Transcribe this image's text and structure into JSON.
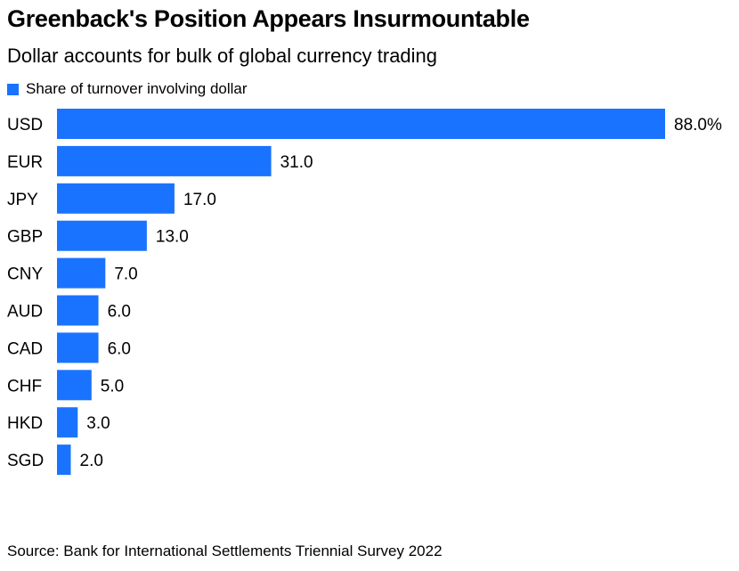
{
  "title": "Greenback's Position Appears Insurmountable",
  "subtitle": "Dollar accounts for bulk of global currency trading",
  "source": "Source: Bank for International Settlements Triennial Survey 2022",
  "colors": {
    "bar": "#1a73ff",
    "text": "#000000"
  },
  "chart_data": {
    "type": "bar",
    "orientation": "horizontal",
    "categories": [
      "USD",
      "EUR",
      "JPY",
      "GBP",
      "CNY",
      "AUD",
      "CAD",
      "CHF",
      "HKD",
      "SGD"
    ],
    "series": [
      {
        "name": "Share of turnover involving dollar",
        "values": [
          88.0,
          31.0,
          17.0,
          13.0,
          7.0,
          6.0,
          6.0,
          5.0,
          3.0,
          2.0
        ],
        "value_labels": [
          "88.0%",
          "31.0",
          "17.0",
          "13.0",
          "7.0",
          "6.0",
          "6.0",
          "5.0",
          "3.0",
          "2.0"
        ]
      }
    ],
    "xlim": [
      0,
      88
    ],
    "grid": false,
    "legend": "top-left"
  }
}
